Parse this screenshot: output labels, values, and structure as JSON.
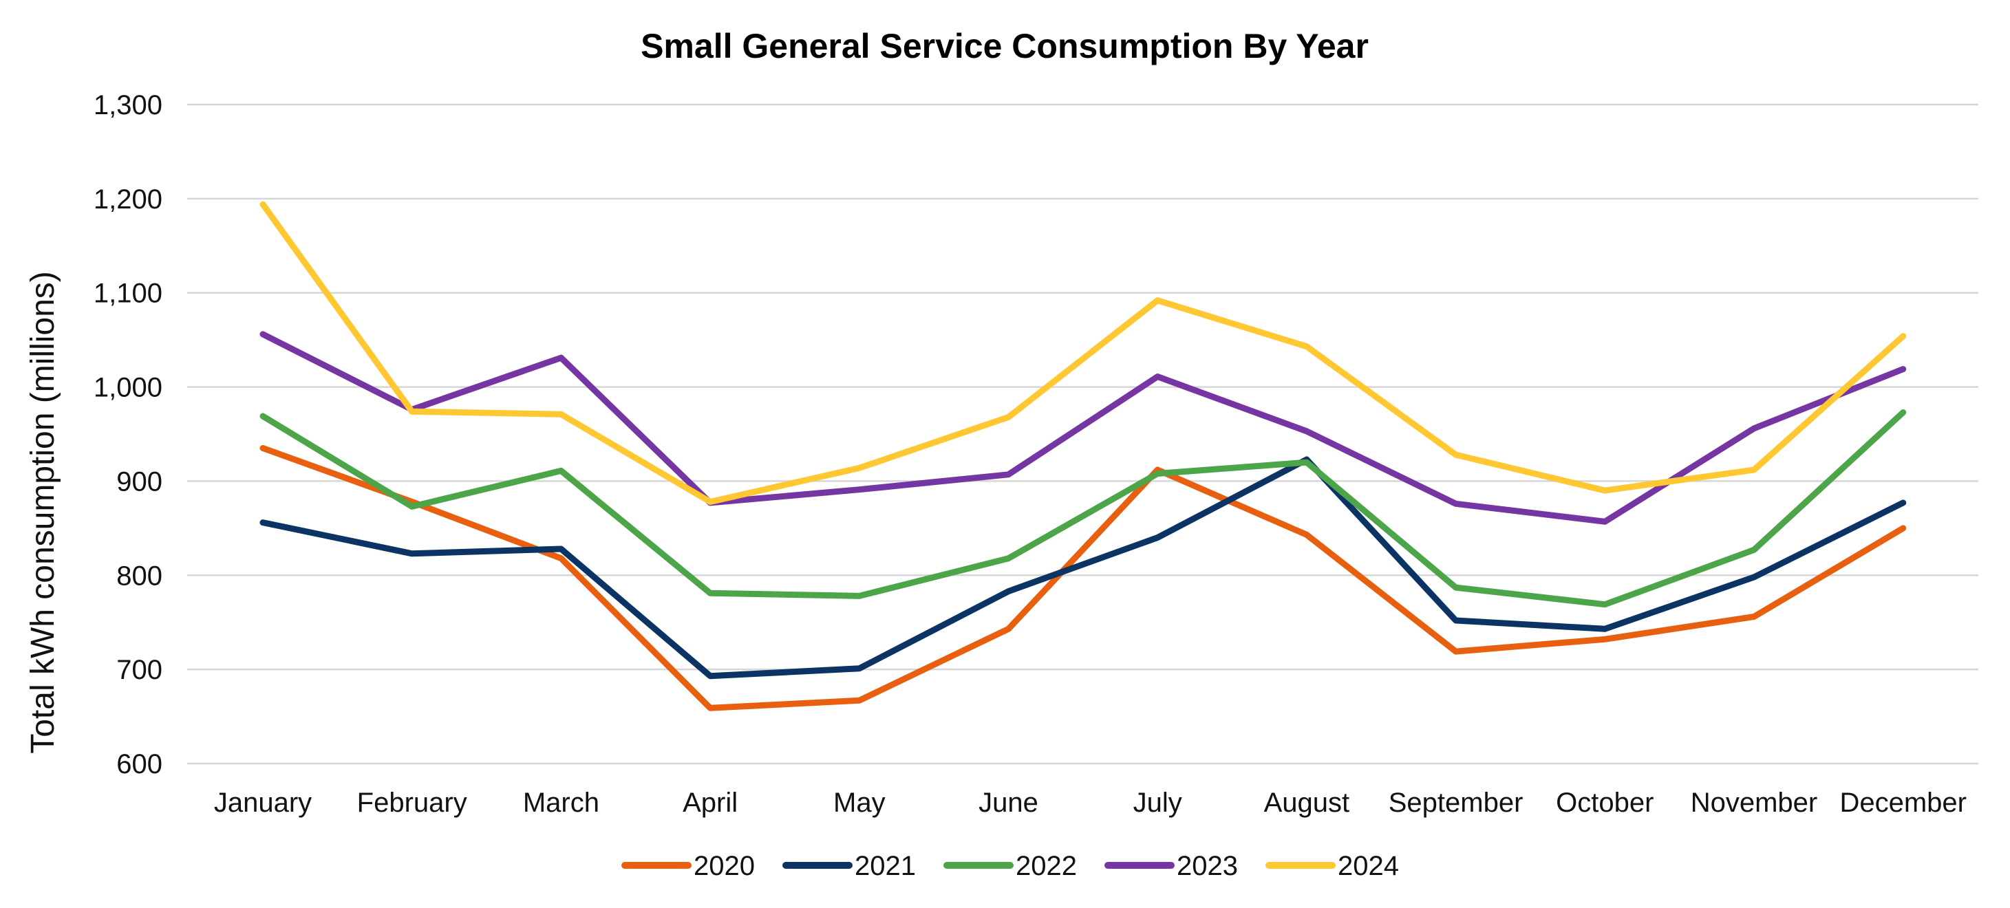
{
  "chart_data": {
    "type": "line",
    "title": "Small General Service Consumption By Year",
    "xlabel": "",
    "ylabel": "Total kWh consumption (millions)",
    "ylim": [
      600,
      1300
    ],
    "ytick_step": 100,
    "ytick_labels": [
      "600",
      "700",
      "800",
      "900",
      "1,000",
      "1,100",
      "1,200",
      "1,300"
    ],
    "grid": true,
    "legend_position": "bottom-center",
    "categories": [
      "January",
      "February",
      "March",
      "April",
      "May",
      "June",
      "July",
      "August",
      "September",
      "October",
      "November",
      "December"
    ],
    "series": [
      {
        "name": "2020",
        "color": "#E8600F",
        "values": [
          935,
          878,
          818,
          659,
          667,
          743,
          912,
          843,
          719,
          732,
          756,
          850
        ]
      },
      {
        "name": "2021",
        "color": "#0B3364",
        "values": [
          856,
          823,
          828,
          693,
          701,
          783,
          840,
          923,
          752,
          743,
          798,
          877
        ]
      },
      {
        "name": "2022",
        "color": "#4CA548",
        "values": [
          969,
          873,
          911,
          781,
          778,
          818,
          908,
          920,
          787,
          769,
          827,
          973
        ]
      },
      {
        "name": "2023",
        "color": "#7535A2",
        "values": [
          1056,
          976,
          1031,
          877,
          891,
          907,
          1011,
          953,
          876,
          857,
          956,
          1019
        ]
      },
      {
        "name": "2024",
        "color": "#FFC732",
        "values": [
          1194,
          974,
          971,
          878,
          914,
          968,
          1092,
          1043,
          928,
          890,
          912,
          1054
        ]
      }
    ]
  }
}
